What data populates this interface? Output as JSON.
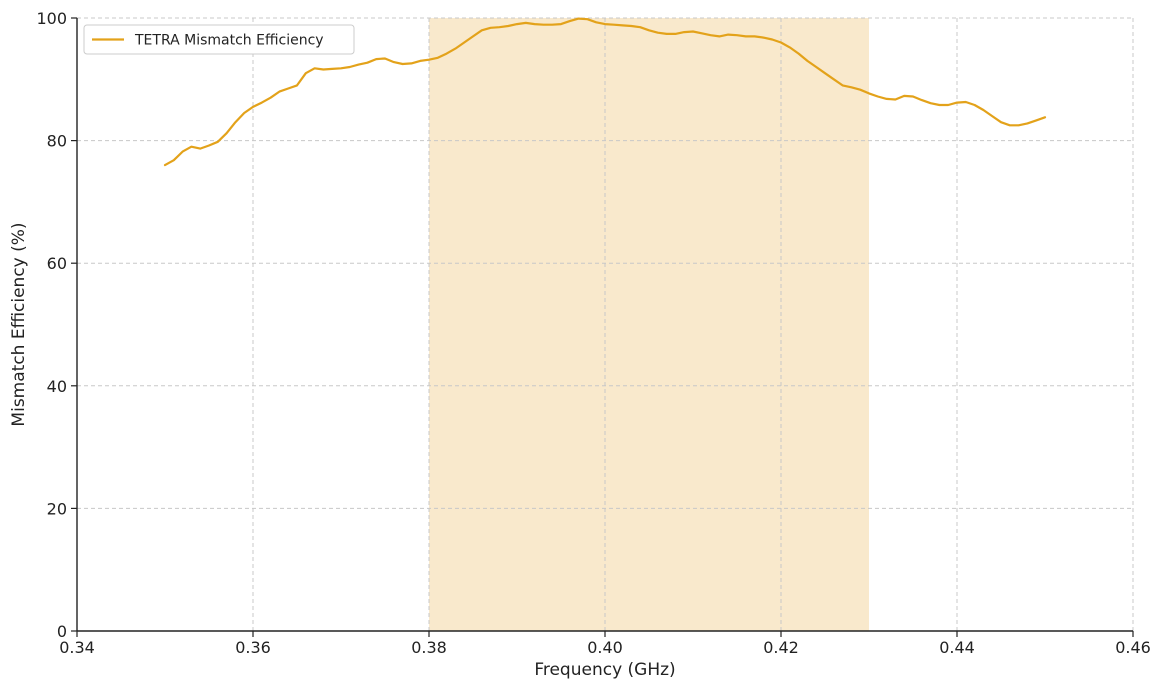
{
  "chart_data": {
    "type": "line",
    "xlabel": "Frequency (GHz)",
    "ylabel": "Mismatch Efficiency (%)",
    "xlim": [
      0.34,
      0.46
    ],
    "ylim": [
      0,
      100
    ],
    "x_ticks": [
      "0.34",
      "0.36",
      "0.38",
      "0.40",
      "0.42",
      "0.44",
      "0.46"
    ],
    "y_ticks": [
      "0",
      "20",
      "40",
      "60",
      "80",
      "100"
    ],
    "grid": true,
    "legend_position": "upper-left",
    "band": {
      "x_start": 0.38,
      "x_end": 0.43,
      "color": "#f9e9cc"
    },
    "series": [
      {
        "name": "TETRA Mismatch Efficiency",
        "color": "#e3a21a",
        "x": [
          0.35,
          0.351,
          0.352,
          0.353,
          0.354,
          0.355,
          0.356,
          0.357,
          0.358,
          0.359,
          0.36,
          0.361,
          0.362,
          0.363,
          0.364,
          0.365,
          0.366,
          0.367,
          0.368,
          0.369,
          0.37,
          0.371,
          0.372,
          0.373,
          0.374,
          0.375,
          0.376,
          0.377,
          0.378,
          0.379,
          0.38,
          0.381,
          0.382,
          0.383,
          0.384,
          0.385,
          0.386,
          0.387,
          0.388,
          0.389,
          0.39,
          0.391,
          0.392,
          0.393,
          0.394,
          0.395,
          0.396,
          0.397,
          0.398,
          0.399,
          0.4,
          0.401,
          0.402,
          0.403,
          0.404,
          0.405,
          0.406,
          0.407,
          0.408,
          0.409,
          0.41,
          0.411,
          0.412,
          0.413,
          0.414,
          0.415,
          0.416,
          0.417,
          0.418,
          0.419,
          0.42,
          0.421,
          0.422,
          0.423,
          0.424,
          0.425,
          0.426,
          0.427,
          0.428,
          0.429,
          0.43,
          0.431,
          0.432,
          0.433,
          0.434,
          0.435,
          0.436,
          0.437,
          0.438,
          0.439,
          0.44,
          0.441,
          0.442,
          0.443,
          0.444,
          0.445,
          0.446,
          0.447,
          0.448,
          0.449,
          0.45
        ],
        "values": [
          76.0,
          76.8,
          78.2,
          79.0,
          78.7,
          79.2,
          79.8,
          81.2,
          83.0,
          84.5,
          85.5,
          86.2,
          87.0,
          88.0,
          88.5,
          89.0,
          91.0,
          91.8,
          91.6,
          91.7,
          91.8,
          92.0,
          92.4,
          92.7,
          93.3,
          93.4,
          92.8,
          92.5,
          92.6,
          93.0,
          93.2,
          93.5,
          94.2,
          95.0,
          96.0,
          97.0,
          98.0,
          98.4,
          98.5,
          98.7,
          99.0,
          99.2,
          99.0,
          98.9,
          98.9,
          99.0,
          99.5,
          99.9,
          99.8,
          99.3,
          99.0,
          98.9,
          98.8,
          98.7,
          98.5,
          98.0,
          97.6,
          97.4,
          97.4,
          97.7,
          97.8,
          97.5,
          97.2,
          97.0,
          97.3,
          97.2,
          97.0,
          97.0,
          96.8,
          96.5,
          96.0,
          95.2,
          94.2,
          93.0,
          92.0,
          91.0,
          90.0,
          89.0,
          88.7,
          88.3,
          87.7,
          87.2,
          86.8,
          86.7,
          87.3,
          87.2,
          86.6,
          86.1,
          85.8,
          85.8,
          86.2,
          86.3,
          85.8,
          85.0,
          84.0,
          83.0,
          82.5,
          82.5,
          82.8,
          83.3,
          83.8
        ]
      }
    ]
  }
}
